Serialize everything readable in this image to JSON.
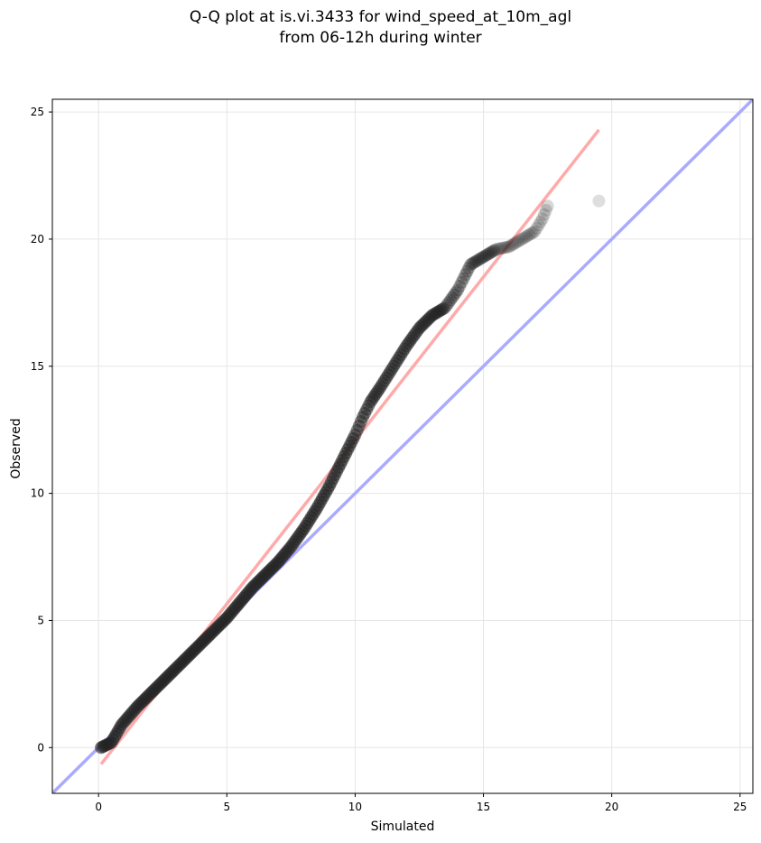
{
  "chart_data": {
    "type": "scatter",
    "title": "Q-Q plot at is.vi.3433 for wind_speed_at_10m_agl",
    "subtitle": "from 06-12h during winter",
    "xlabel": "Simulated",
    "ylabel": "Observed",
    "xlim": [
      -1.8,
      25.5
    ],
    "ylim": [
      -1.8,
      25.5
    ],
    "xticks": [
      0,
      5,
      10,
      15,
      20,
      25
    ],
    "yticks": [
      0,
      5,
      10,
      15,
      20,
      25
    ],
    "grid": true,
    "reference_lines": [
      {
        "kind": "identity",
        "color": "#aaaaff",
        "x": [
          -1.8,
          25.5
        ],
        "y": [
          -1.8,
          25.5
        ]
      },
      {
        "kind": "fit",
        "color": "#ffaaaa",
        "x": [
          0.1,
          19.5
        ],
        "y": [
          -0.65,
          24.3
        ]
      }
    ],
    "quantiles": {
      "x": [
        0.1,
        0.5,
        0.9,
        1.5,
        2.0,
        2.5,
        3.0,
        3.5,
        4.0,
        4.5,
        5.0,
        5.5,
        6.0,
        6.5,
        7.0,
        7.5,
        8.0,
        8.5,
        9.0,
        9.5,
        10.0,
        10.3,
        10.6,
        11.0,
        11.5,
        12.0,
        12.5,
        13.0,
        13.5,
        14.0,
        14.3,
        14.5,
        15.0,
        15.5,
        16.0,
        16.5,
        17.0,
        17.3,
        17.5,
        19.5
      ],
      "y": [
        0.0,
        0.2,
        0.9,
        1.6,
        2.1,
        2.6,
        3.1,
        3.6,
        4.1,
        4.6,
        5.1,
        5.7,
        6.3,
        6.8,
        7.3,
        7.9,
        8.6,
        9.4,
        10.3,
        11.3,
        12.3,
        13.0,
        13.6,
        14.2,
        15.0,
        15.8,
        16.5,
        17.0,
        17.3,
        18.0,
        18.6,
        19.0,
        19.3,
        19.6,
        19.7,
        20.0,
        20.3,
        20.8,
        21.3,
        21.5
      ]
    },
    "marker_color": "#222222"
  }
}
